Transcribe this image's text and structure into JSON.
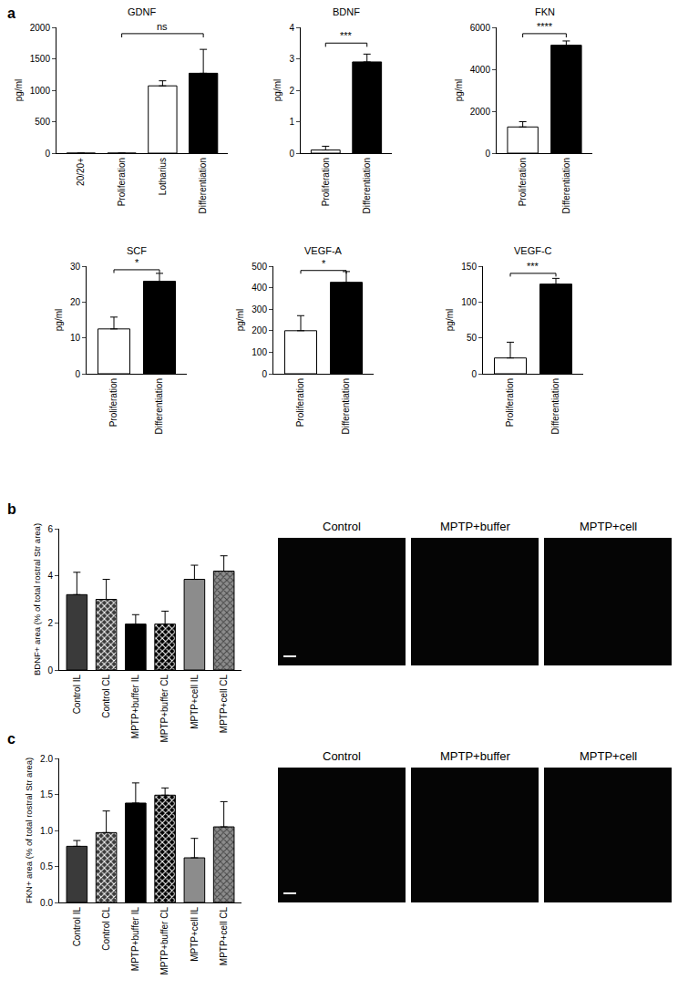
{
  "chart_data": [
    {
      "type": "bar",
      "title": "GDNF",
      "y_label": "pg/ml",
      "categories": [
        "20/20+",
        "Proliferation",
        "Lotharius",
        "Differentiation"
      ],
      "values": [
        0,
        0,
        1070,
        1270
      ],
      "error": [
        0,
        0,
        80,
        380
      ],
      "colors": [
        "#ffffff",
        "#ffffff",
        "#ffffff",
        "#000000"
      ],
      "ylim": [
        0,
        2000
      ],
      "yticks": [
        0,
        500,
        1000,
        1500,
        2000
      ],
      "grid": false,
      "significance": [
        {
          "from": "Proliferation",
          "to": "Differentiation",
          "y": 1900,
          "label": "ns"
        }
      ]
    },
    {
      "type": "bar",
      "title": "BDNF",
      "y_label": "pg/ml",
      "categories": [
        "Proliferation",
        "Differentiation"
      ],
      "values": [
        0.1,
        2.9
      ],
      "error": [
        0.12,
        0.25
      ],
      "colors": [
        "#ffffff",
        "#000000"
      ],
      "ylim": [
        0,
        4
      ],
      "yticks": [
        0,
        1,
        2,
        3,
        4
      ],
      "grid": false,
      "significance": [
        {
          "from": "Proliferation",
          "to": "Differentiation",
          "y": 3.5,
          "label": "***"
        }
      ]
    },
    {
      "type": "bar",
      "title": "FKN",
      "y_label": "pg/ml",
      "categories": [
        "Proliferation",
        "Differentiation"
      ],
      "values": [
        1250,
        5150
      ],
      "error": [
        250,
        200
      ],
      "colors": [
        "#ffffff",
        "#000000"
      ],
      "ylim": [
        0,
        6000
      ],
      "yticks": [
        0,
        2000,
        4000,
        6000
      ],
      "grid": false,
      "significance": [
        {
          "from": "Proliferation",
          "to": "Differentiation",
          "y": 5700,
          "label": "****"
        }
      ]
    },
    {
      "type": "bar",
      "title": "SCF",
      "y_label": "pg/ml",
      "categories": [
        "Proliferation",
        "Differentiation"
      ],
      "values": [
        12.5,
        25.8
      ],
      "error": [
        3.3,
        2.2
      ],
      "colors": [
        "#ffffff",
        "#000000"
      ],
      "ylim": [
        0,
        30
      ],
      "yticks": [
        0,
        10,
        20,
        30
      ],
      "grid": false,
      "significance": [
        {
          "from": "Proliferation",
          "to": "Differentiation",
          "y": 29,
          "label": "*"
        }
      ]
    },
    {
      "type": "bar",
      "title": "VEGF-A",
      "y_label": "pg/ml",
      "categories": [
        "Proliferation",
        "Differentiation"
      ],
      "values": [
        200,
        425
      ],
      "error": [
        70,
        50
      ],
      "colors": [
        "#ffffff",
        "#000000"
      ],
      "ylim": [
        0,
        500
      ],
      "yticks": [
        0,
        100,
        200,
        300,
        400,
        500
      ],
      "grid": false,
      "significance": [
        {
          "from": "Proliferation",
          "to": "Differentiation",
          "y": 480,
          "label": "*"
        }
      ]
    },
    {
      "type": "bar",
      "title": "VEGF-C",
      "y_label": "pg/ml",
      "categories": [
        "Proliferation",
        "Differentiation"
      ],
      "values": [
        22,
        125
      ],
      "error": [
        22,
        8
      ],
      "colors": [
        "#ffffff",
        "#000000"
      ],
      "ylim": [
        0,
        150
      ],
      "yticks": [
        0,
        50,
        100,
        150
      ],
      "grid": false,
      "significance": [
        {
          "from": "Proliferation",
          "to": "Differentiation",
          "y": 140,
          "label": "***"
        }
      ]
    },
    {
      "type": "bar",
      "y_label": "BDNF+ area (% of total rostral Str area)",
      "categories": [
        "Control IL",
        "Control CL",
        "MPTP+buffer IL",
        "MPTP+buffer CL",
        "MPTP+cell IL",
        "MPTP+cell CL"
      ],
      "values": [
        3.2,
        3.0,
        1.95,
        1.95,
        3.85,
        4.2
      ],
      "error": [
        0.95,
        0.85,
        0.4,
        0.55,
        0.6,
        0.65
      ],
      "colors": [
        "#3a3a3a",
        "#3a3a3a",
        "#000000",
        "#000000",
        "#8c8c8c",
        "#8c8c8c"
      ],
      "marker": [
        "solid",
        "checkered",
        "solid",
        "checkered",
        "solid",
        "checkered"
      ],
      "ylim": [
        0,
        6
      ],
      "yticks": [
        0,
        2,
        4,
        6
      ],
      "grid": false
    },
    {
      "type": "bar",
      "y_label": "FKN+ area (% of total rostral Str area)",
      "categories": [
        "Control IL",
        "Control CL",
        "MPTP+buffer IL",
        "MPTP+buffer CL",
        "MPTP+cell IL",
        "MPTP+cell CL"
      ],
      "values": [
        0.78,
        0.97,
        1.38,
        1.49,
        0.62,
        1.05
      ],
      "error": [
        0.08,
        0.3,
        0.28,
        0.1,
        0.27,
        0.35
      ],
      "colors": [
        "#3a3a3a",
        "#3a3a3a",
        "#000000",
        "#000000",
        "#8c8c8c",
        "#8c8c8c"
      ],
      "marker": [
        "solid",
        "checkered",
        "solid",
        "checkered",
        "solid",
        "checkered"
      ],
      "ylim": [
        0,
        2.0
      ],
      "yticks": [
        {
          "value": 0,
          "label": "0.0"
        },
        0.5,
        {
          "value": 1,
          "label": "1.0"
        },
        1.5,
        {
          "value": 2,
          "label": "2.0"
        }
      ],
      "grid": false
    }
  ],
  "panels": [
    {
      "label": "a"
    },
    {
      "label": "b",
      "image_labels": [
        "Control",
        "MPTP+buffer",
        "MPTP+cell"
      ]
    },
    {
      "label": "c",
      "image_labels": [
        "Control",
        "MPTP+buffer",
        "MPTP+cell"
      ]
    }
  ]
}
